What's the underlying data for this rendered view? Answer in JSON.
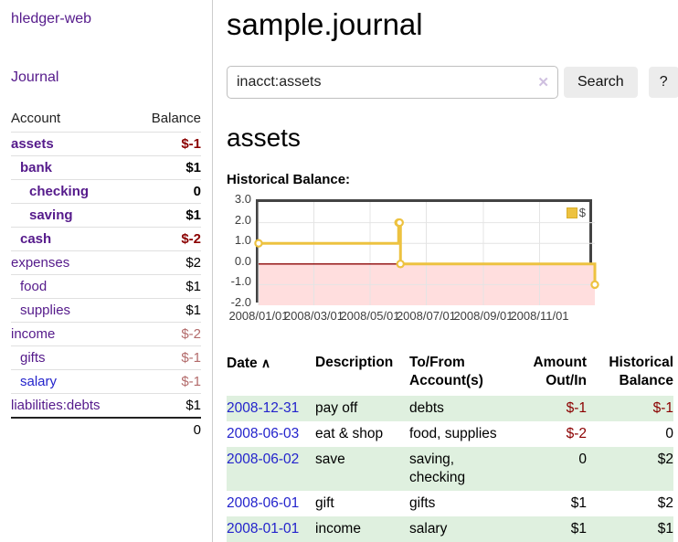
{
  "palette": {
    "purple_link": "#551a8b",
    "blue_link": "#2323cc",
    "negative_strong": "#8b0000",
    "negative_soft": "#b36b6b",
    "green_stripe": "#dff0df",
    "series_yellow": "#edc240"
  },
  "sidebar": {
    "app_title": "hledger-web",
    "journal_link": "Journal",
    "accounts_table": {
      "account_header": "Account",
      "balance_header": "Balance",
      "rows": [
        {
          "name": "assets",
          "indent": 1,
          "bold": true,
          "link_color": "purple",
          "balance": "$-1",
          "balance_style": "neg-strong"
        },
        {
          "name": "bank",
          "indent": 2,
          "bold": true,
          "link_color": "purple",
          "balance": "$1",
          "balance_style": "pos"
        },
        {
          "name": "checking",
          "indent": 3,
          "bold": true,
          "link_color": "purple",
          "balance": "0",
          "balance_style": "pos"
        },
        {
          "name": "saving",
          "indent": 3,
          "bold": true,
          "link_color": "purple",
          "balance": "$1",
          "balance_style": "pos"
        },
        {
          "name": "cash",
          "indent": 2,
          "bold": true,
          "link_color": "purple",
          "balance": "$-2",
          "balance_style": "neg-strong"
        },
        {
          "name": "expenses",
          "indent": 1,
          "bold": false,
          "link_color": "purple",
          "balance": "$2",
          "balance_style": "pos"
        },
        {
          "name": "food",
          "indent": 2,
          "bold": false,
          "link_color": "purple",
          "balance": "$1",
          "balance_style": "pos"
        },
        {
          "name": "supplies",
          "indent": 2,
          "bold": false,
          "link_color": "purple",
          "balance": "$1",
          "balance_style": "pos"
        },
        {
          "name": "income",
          "indent": 1,
          "bold": false,
          "link_color": "purple",
          "balance": "$-2",
          "balance_style": "neg-soft"
        },
        {
          "name": "gifts",
          "indent": 2,
          "bold": false,
          "link_color": "purple",
          "balance": "$-1",
          "balance_style": "neg-soft"
        },
        {
          "name": "salary",
          "indent": 2,
          "bold": false,
          "link_color": "blue",
          "balance": "$-1",
          "balance_style": "neg-soft"
        },
        {
          "name": "liabilities:debts",
          "indent": 1,
          "bold": false,
          "link_color": "purple",
          "balance": "$1",
          "balance_style": "pos"
        }
      ],
      "total": "0"
    }
  },
  "header": {
    "title": "sample.journal"
  },
  "search": {
    "value": "inacct:assets",
    "clear_icon": "✕",
    "button_label": "Search",
    "help_label": "?"
  },
  "account_page": {
    "heading": "assets",
    "chart_label": "Historical Balance:"
  },
  "chart_data": {
    "type": "line",
    "title": "Historical Balance",
    "step": true,
    "legend": [
      {
        "label": "$",
        "color": "#edc240"
      }
    ],
    "legend_position": "top-right",
    "grid": true,
    "xlabel": "",
    "ylabel": "",
    "x_range": [
      "2008-01-01",
      "2008-12-31"
    ],
    "ylim": [
      -2,
      3
    ],
    "y_ticks": [
      {
        "v": 3,
        "label": "3.0"
      },
      {
        "v": 2,
        "label": "2.0"
      },
      {
        "v": 1,
        "label": "1.0"
      },
      {
        "v": 0,
        "label": "0.0"
      },
      {
        "v": -1,
        "label": "-1.0"
      },
      {
        "v": -2,
        "label": "-2.0"
      }
    ],
    "x_ticks": [
      {
        "date": "2008-01-01",
        "label": "2008/01/01"
      },
      {
        "date": "2008-03-01",
        "label": "2008/03/01"
      },
      {
        "date": "2008-05-01",
        "label": "2008/05/01"
      },
      {
        "date": "2008-07-01",
        "label": "2008/07/01"
      },
      {
        "date": "2008-09-01",
        "label": "2008/09/01"
      },
      {
        "date": "2008-11-01",
        "label": "2008/11/01"
      }
    ],
    "points": [
      {
        "date": "2008-01-01",
        "value": 1
      },
      {
        "date": "2008-06-01",
        "value": 2
      },
      {
        "date": "2008-06-02",
        "value": 2
      },
      {
        "date": "2008-06-03",
        "value": 0
      },
      {
        "date": "2008-12-31",
        "value": -1
      }
    ],
    "negative_region_fill": "#ffdede",
    "zero_line_color": "#8c0404"
  },
  "transactions": {
    "headers": {
      "date": "Date",
      "sort_icon": "∧",
      "description": "Description",
      "accounts": "To/From Account(s)",
      "amount": "Amount Out/In",
      "balance": "Historical Balance"
    },
    "rows": [
      {
        "date": "2008-12-31",
        "description": "pay off",
        "accounts": "debts",
        "amount": "$-1",
        "amount_neg": true,
        "balance": "$-1",
        "balance_neg": true
      },
      {
        "date": "2008-06-03",
        "description": "eat & shop",
        "accounts": "food, supplies",
        "amount": "$-2",
        "amount_neg": true,
        "balance": "0",
        "balance_neg": false
      },
      {
        "date": "2008-06-02",
        "description": "save",
        "accounts": "saving, checking",
        "amount": "0",
        "amount_neg": false,
        "balance": "$2",
        "balance_neg": false
      },
      {
        "date": "2008-06-01",
        "description": "gift",
        "accounts": "gifts",
        "amount": "$1",
        "amount_neg": false,
        "balance": "$2",
        "balance_neg": false
      },
      {
        "date": "2008-01-01",
        "description": "income",
        "accounts": "salary",
        "amount": "$1",
        "amount_neg": false,
        "balance": "$1",
        "balance_neg": false
      }
    ]
  }
}
